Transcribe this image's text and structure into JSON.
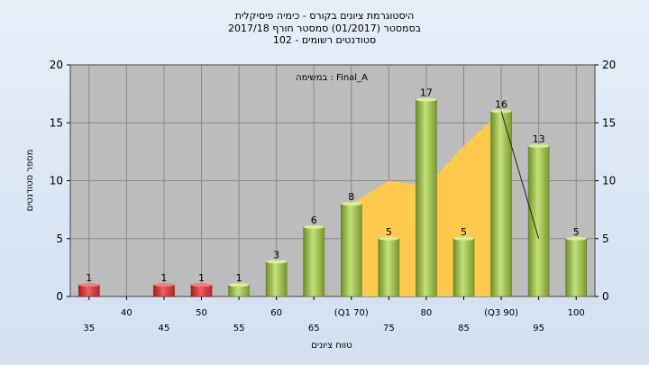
{
  "chart_data": {
    "type": "bar",
    "title_lines": [
      "היסטוגרמת ציונים בקורס - כימיה פיסיקלית",
      "בסמסטר  (01/2017)  סמסטר חורף 2017/18",
      "סטודנטים רשומים - 102"
    ],
    "annotation": "במשימה : Final_A",
    "ylabel": "מספר סטודנטים",
    "xlabel": "טווח ציונים",
    "ylim": [
      0,
      20
    ],
    "yticks": [
      0,
      5,
      10,
      15,
      20
    ],
    "grid": true,
    "x_tick_labels_upper": [
      "40",
      "50",
      "60",
      "(Q1 70)",
      "80",
      "(Q3 90)",
      "100"
    ],
    "x_tick_labels_lower": [
      "35",
      "45",
      "55",
      "65",
      "75",
      "85",
      "95"
    ],
    "categories": [
      "35",
      "40",
      "45",
      "50",
      "55",
      "60",
      "65",
      "70",
      "75",
      "80",
      "85",
      "90",
      "95",
      "100"
    ],
    "values": [
      1,
      0,
      1,
      1,
      1,
      3,
      6,
      8,
      5,
      17,
      5,
      16,
      13,
      5
    ],
    "value_labels": [
      "1",
      "",
      "1",
      "1",
      "1",
      "3",
      "6",
      "8",
      "5",
      "17",
      "5",
      "16",
      "13",
      "5"
    ],
    "bar_colors": [
      "#d83a3a",
      "",
      "#d83a3a",
      "#d83a3a",
      "#9ac24a",
      "#9ac24a",
      "#9ac24a",
      "#9ac24a",
      "#9ac24a",
      "#9ac24a",
      "#9ac24a",
      "#9ac24a",
      "#9ac24a",
      "#9ac24a"
    ],
    "area_points": [
      [
        70,
        8
      ],
      [
        75,
        10
      ],
      [
        80,
        9.5
      ],
      [
        85,
        13
      ],
      [
        90,
        16
      ]
    ],
    "area_color": "#ffc94d",
    "median_line": [
      [
        90,
        16
      ],
      [
        95,
        5
      ]
    ]
  }
}
